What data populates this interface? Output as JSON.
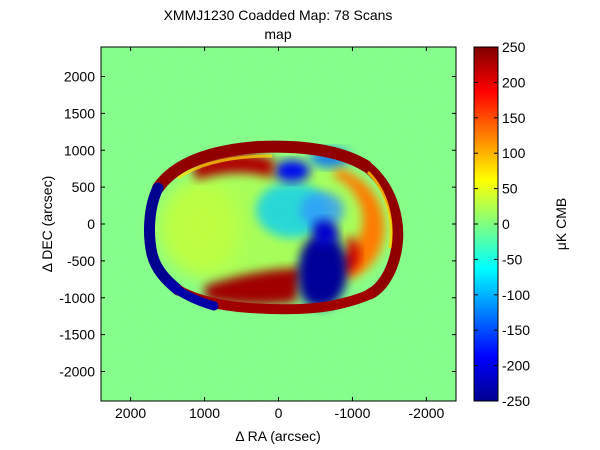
{
  "figure": {
    "title": "XMMJ1230 Coadded Map: 78 Scans",
    "subtitle": "map"
  },
  "chart_data": {
    "type": "heatmap",
    "title": "XMMJ1230 Coadded Map: 78 Scans",
    "subtitle": "map",
    "xlabel": "Δ RA (arcsec)",
    "ylabel": "Δ DEC (arcsec)",
    "xlim": [
      2400,
      -2400
    ],
    "ylim": [
      -2400,
      2400
    ],
    "x_reversed": true,
    "xticks": [
      2000,
      1000,
      0,
      -1000,
      -2000
    ],
    "xtick_labels": [
      "2000",
      "1000",
      "0",
      "-1000",
      "-2000"
    ],
    "yticks": [
      2000,
      1500,
      1000,
      500,
      0,
      -500,
      -1000,
      -1500,
      -2000
    ],
    "ytick_labels": [
      "2000",
      "1500",
      "1000",
      "500",
      "0",
      "-500",
      "-1000",
      "-1500",
      "-2000"
    ],
    "colorbar": {
      "label": "μK CMB",
      "min": -250,
      "max": 250,
      "ticks": [
        250,
        200,
        150,
        100,
        50,
        0,
        -50,
        -100,
        -150,
        -200,
        -250
      ],
      "tick_labels": [
        "250",
        "200",
        "150",
        "100",
        "50",
        "0",
        "-50",
        "-100",
        "-150",
        "-200",
        "-250"
      ],
      "colormap": "jet"
    },
    "background_level": 0,
    "grid": false,
    "features": [
      {
        "region": "ring-top-edge",
        "value": 250
      },
      {
        "region": "inner-top-band",
        "value": 250
      },
      {
        "region": "right-interior-band",
        "value": 200
      },
      {
        "region": "left-bottom-ring-edge",
        "value": 250
      },
      {
        "region": "left-ring-edge",
        "value": -250
      },
      {
        "region": "bottom-right-lobe",
        "value": -250
      },
      {
        "region": "top-center-spot",
        "value": -200
      },
      {
        "region": "bottom-left-band",
        "value": 250
      },
      {
        "region": "center-patch",
        "value": -100
      },
      {
        "region": "left-interior",
        "value": 40
      }
    ]
  }
}
